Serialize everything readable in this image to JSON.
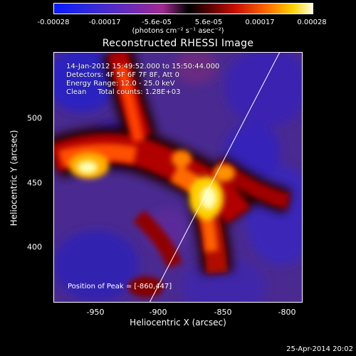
{
  "colorbar": {
    "ticks": [
      "-0.00028",
      "-0.00017",
      "-5.6e-05",
      "5.6e-05",
      "0.00017",
      "0.00028"
    ],
    "unit": "(photons cm⁻² s⁻¹ asec⁻²)"
  },
  "title": "Reconstructed RHESSI Image",
  "info": {
    "line1": "14-Jan-2012 15:49:52.000 to 15:50:44.000",
    "line2": "Detectors: 4F 5F 6F 7F 8F, Att 0",
    "line3": "Energy Range: 12.0 - 25.0 keV",
    "line4": "Clean     Total counts: 1.28E+03"
  },
  "peak": "Position of Peak = [-860,447]",
  "axes": {
    "xlabel": "Heliocentric X (arcsec)",
    "ylabel": "Heliocentric Y (arcsec)",
    "x_ticks": [
      "-950",
      "-900",
      "-850",
      "-800"
    ],
    "y_ticks": [
      "500",
      "450",
      "400"
    ]
  },
  "date": "25-Apr-2014 20:02",
  "colors": {
    "background": "#000000",
    "text": "#ffffff",
    "limb_line": "#ffffff"
  }
}
